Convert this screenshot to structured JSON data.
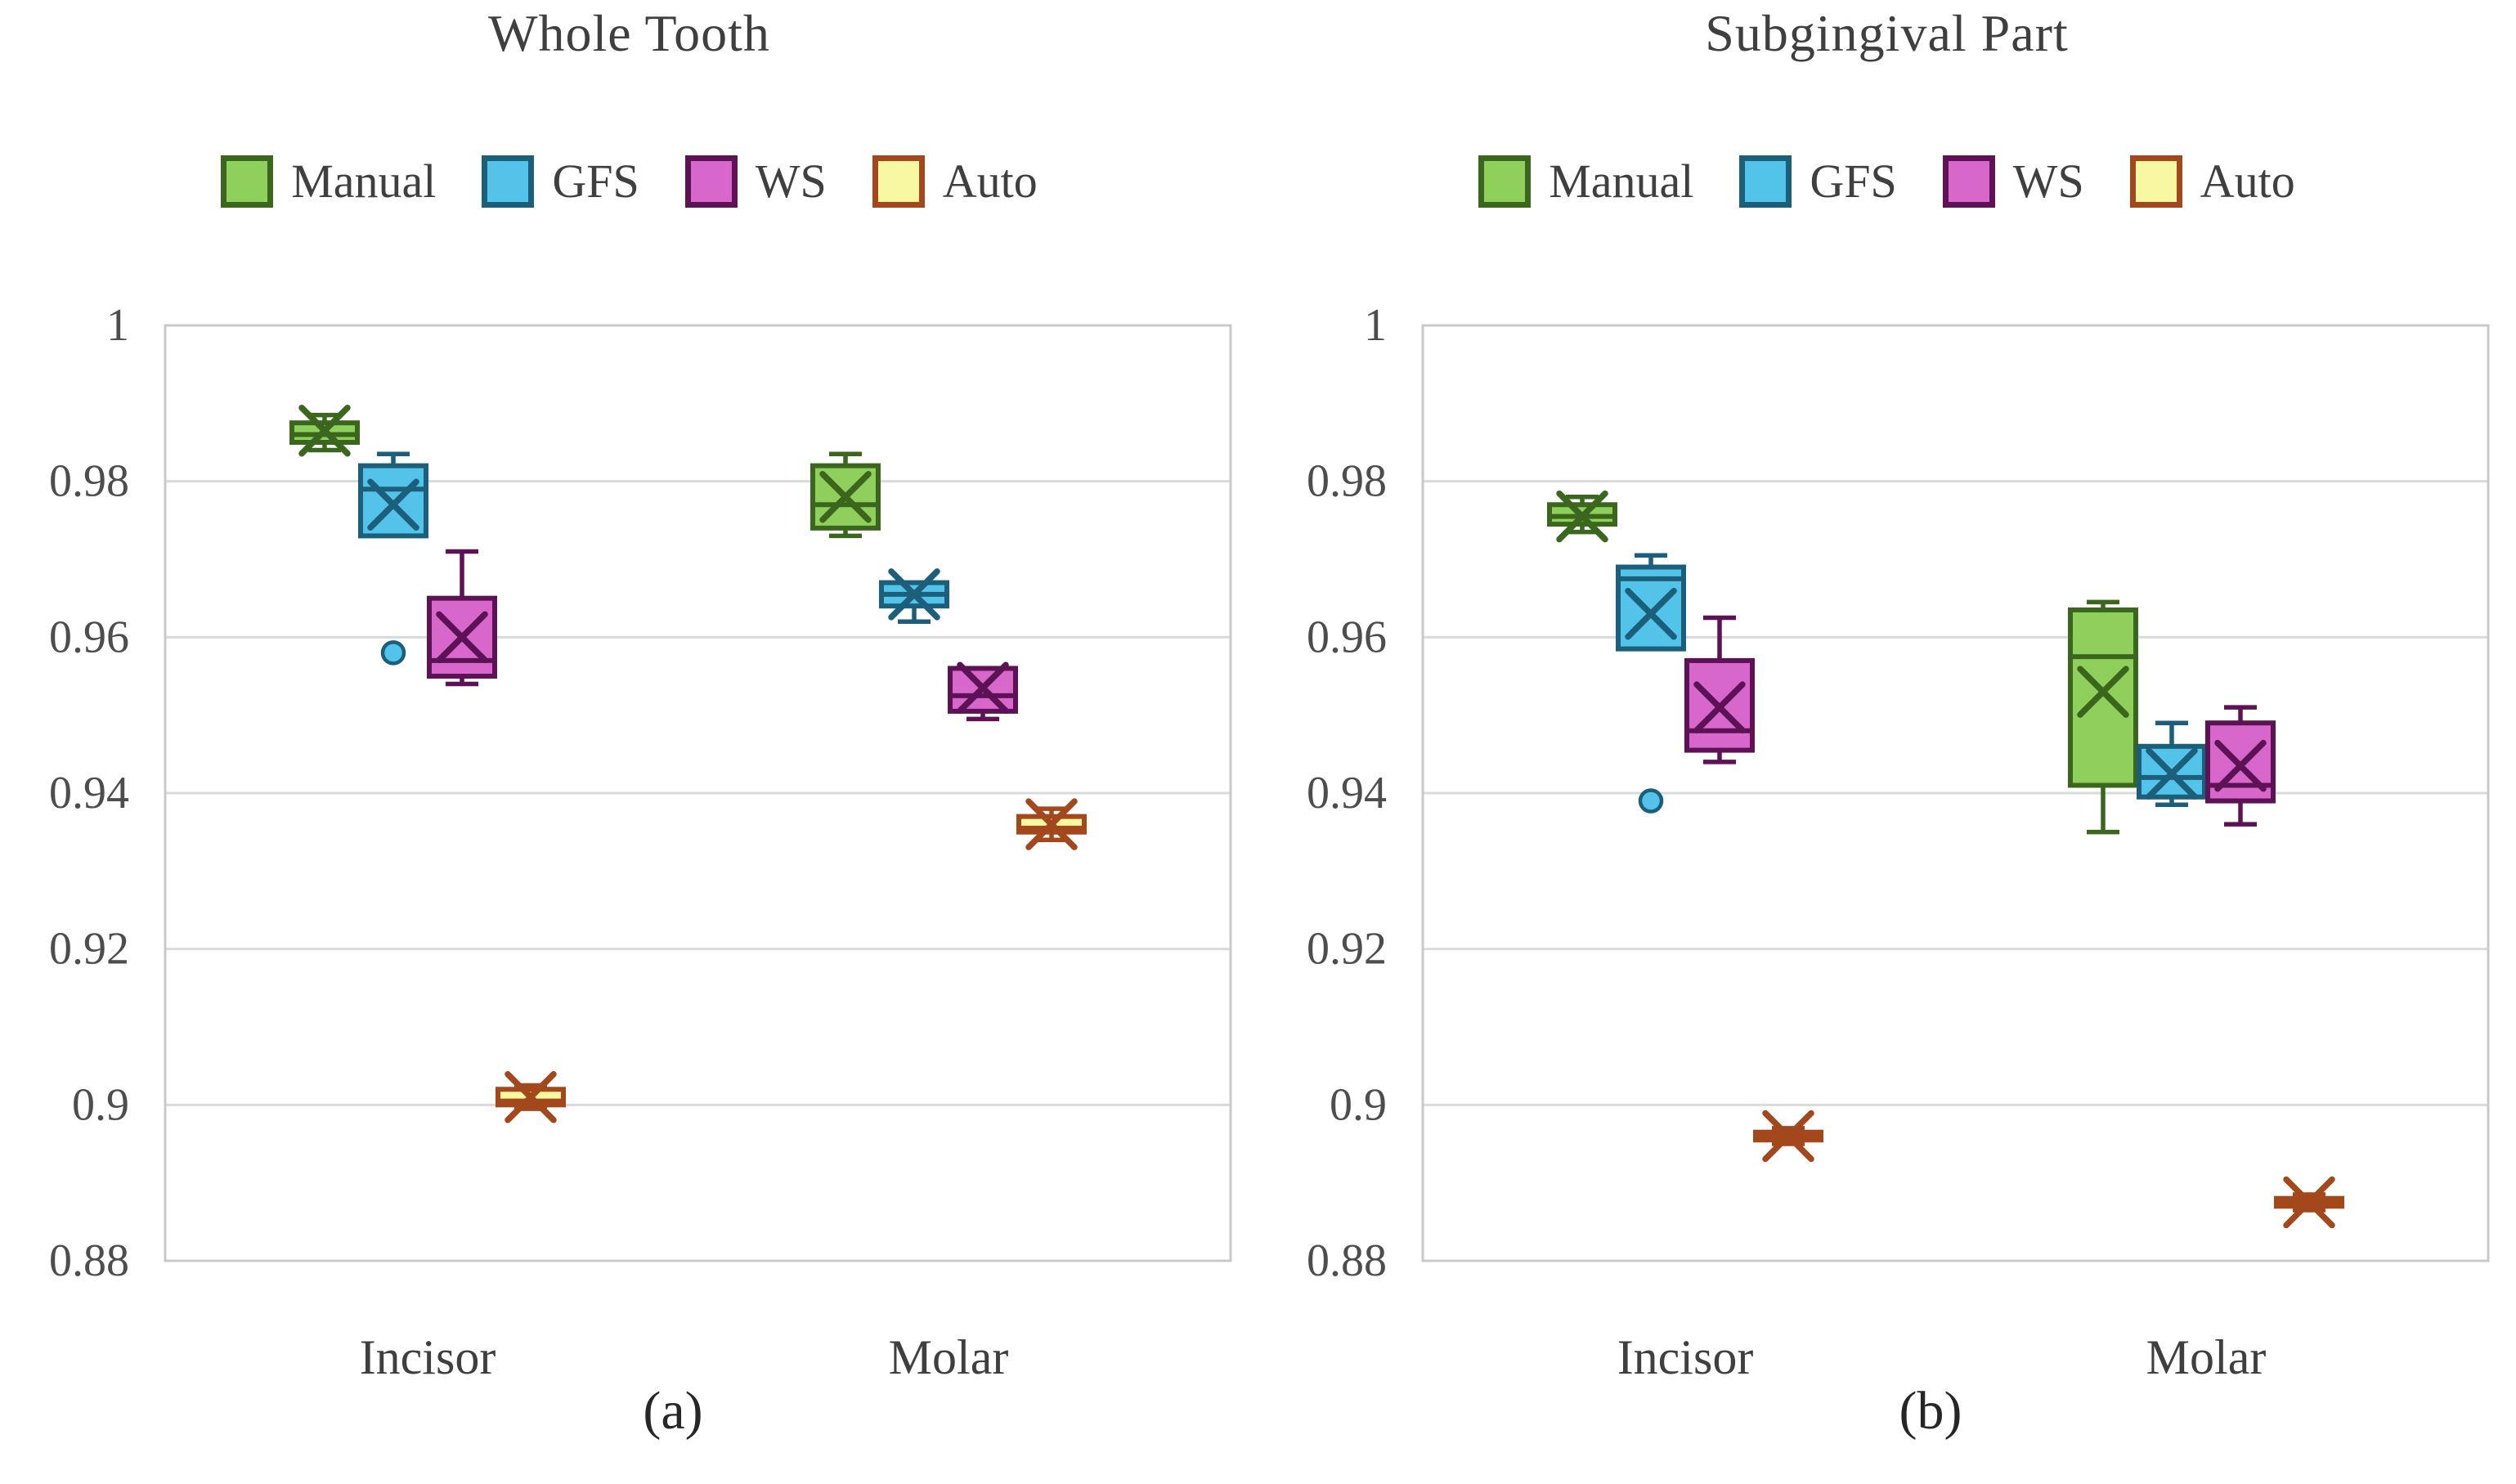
{
  "figure": {
    "background": "#ffffff",
    "text_color": "#3f3f3f",
    "tick_text_color": "#4d4d4d",
    "grid_color": "#d9d9d9",
    "border_color": "#c9c9c9"
  },
  "legend": {
    "items": [
      {
        "label": "Manual",
        "fill": "#8FD05C",
        "stroke": "#3A671D"
      },
      {
        "label": "GFS",
        "fill": "#53C3EA",
        "stroke": "#1B5F7B"
      },
      {
        "label": "WS",
        "fill": "#D767CB",
        "stroke": "#5C1255"
      },
      {
        "label": "Auto",
        "fill": "#F9F8A2",
        "stroke": "#A3471C"
      }
    ]
  },
  "axes": {
    "y_min": 0.88,
    "y_max": 1.0,
    "y_ticks": [
      {
        "label": "1",
        "value": 1.0
      },
      {
        "label": "0.98",
        "value": 0.98
      },
      {
        "label": "0.96",
        "value": 0.96
      },
      {
        "label": "0.94",
        "value": 0.94
      },
      {
        "label": "0.92",
        "value": 0.92
      },
      {
        "label": "0.9",
        "value": 0.9
      },
      {
        "label": "0.88",
        "value": 0.88
      }
    ]
  },
  "chart_data": [
    {
      "type": "box",
      "title": "Whole Tooth",
      "label": "(a)",
      "ylim": [
        0.88,
        1.0
      ],
      "categories": [
        "Incisor",
        "Molar"
      ],
      "series": [
        {
          "name": "Manual",
          "boxes": [
            {
              "whisker_low": 0.984,
              "q1": 0.985,
              "median": 0.986,
              "q3": 0.9875,
              "whisker_high": 0.9885,
              "mean": 0.9865
            },
            {
              "whisker_low": 0.973,
              "q1": 0.974,
              "median": 0.977,
              "q3": 0.982,
              "whisker_high": 0.9835,
              "mean": 0.978
            }
          ]
        },
        {
          "name": "GFS",
          "boxes": [
            {
              "whisker_low": 0.973,
              "q1": 0.973,
              "median": 0.979,
              "q3": 0.982,
              "whisker_high": 0.9835,
              "mean": 0.977,
              "outliers": [
                0.958
              ]
            },
            {
              "whisker_low": 0.962,
              "q1": 0.964,
              "median": 0.9655,
              "q3": 0.967,
              "whisker_high": 0.967,
              "mean": 0.9655
            }
          ]
        },
        {
          "name": "WS",
          "boxes": [
            {
              "whisker_low": 0.954,
              "q1": 0.955,
              "median": 0.957,
              "q3": 0.965,
              "whisker_high": 0.971,
              "mean": 0.96
            },
            {
              "whisker_low": 0.9495,
              "q1": 0.9505,
              "median": 0.9525,
              "q3": 0.956,
              "whisker_high": 0.956,
              "mean": 0.9535
            }
          ]
        },
        {
          "name": "Auto",
          "boxes": [
            {
              "whisker_low": 0.8995,
              "q1": 0.9,
              "median": 0.9005,
              "q3": 0.902,
              "whisker_high": 0.9025,
              "mean": 0.901
            },
            {
              "whisker_low": 0.934,
              "q1": 0.935,
              "median": 0.9355,
              "q3": 0.937,
              "whisker_high": 0.938,
              "mean": 0.936
            }
          ]
        }
      ]
    },
    {
      "type": "box",
      "title": "Subgingival Part",
      "label": "(b)",
      "ylim": [
        0.88,
        1.0
      ],
      "categories": [
        "Incisor",
        "Molar"
      ],
      "series": [
        {
          "name": "Manual",
          "boxes": [
            {
              "whisker_low": 0.9735,
              "q1": 0.9745,
              "median": 0.9755,
              "q3": 0.977,
              "whisker_high": 0.978,
              "mean": 0.9755
            },
            {
              "whisker_low": 0.935,
              "q1": 0.941,
              "median": 0.9575,
              "q3": 0.9635,
              "whisker_high": 0.9645,
              "mean": 0.953
            }
          ]
        },
        {
          "name": "GFS",
          "boxes": [
            {
              "whisker_low": 0.9585,
              "q1": 0.9585,
              "median": 0.9675,
              "q3": 0.969,
              "whisker_high": 0.9705,
              "mean": 0.963,
              "outliers": [
                0.939
              ]
            },
            {
              "whisker_low": 0.9385,
              "q1": 0.9395,
              "median": 0.942,
              "q3": 0.946,
              "whisker_high": 0.949,
              "mean": 0.9425
            }
          ]
        },
        {
          "name": "WS",
          "boxes": [
            {
              "whisker_low": 0.944,
              "q1": 0.9455,
              "median": 0.948,
              "q3": 0.957,
              "whisker_high": 0.9625,
              "mean": 0.951
            },
            {
              "whisker_low": 0.936,
              "q1": 0.939,
              "median": 0.941,
              "q3": 0.949,
              "whisker_high": 0.951,
              "mean": 0.9435
            }
          ]
        },
        {
          "name": "Auto",
          "boxes": [
            {
              "whisker_low": 0.895,
              "q1": 0.8955,
              "median": 0.896,
              "q3": 0.8965,
              "whisker_high": 0.897,
              "mean": 0.896
            },
            {
              "whisker_low": 0.8865,
              "q1": 0.887,
              "median": 0.8875,
              "q3": 0.888,
              "whisker_high": 0.8885,
              "mean": 0.8875
            }
          ]
        }
      ]
    }
  ]
}
